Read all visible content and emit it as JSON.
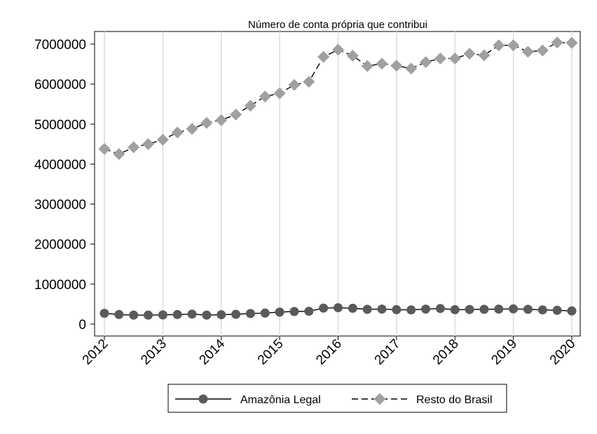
{
  "chart_data": {
    "type": "line",
    "title": "Número de conta própria que contribui",
    "xlabel": "",
    "ylabel": "",
    "grid": true,
    "legend_position": "bottom",
    "xlim": [
      2012,
      2020
    ],
    "ylim": [
      0,
      7000000
    ],
    "x_ticks": [
      "2012",
      "2013",
      "2014",
      "2015",
      "2016",
      "2017",
      "2018",
      "2019",
      "2020"
    ],
    "y_ticks": [
      "0",
      "1000000",
      "2000000",
      "3000000",
      "4000000",
      "5000000",
      "6000000",
      "7000000"
    ],
    "x": [
      2012.0,
      2012.25,
      2012.5,
      2012.75,
      2013.0,
      2013.25,
      2013.5,
      2013.75,
      2014.0,
      2014.25,
      2014.5,
      2014.75,
      2015.0,
      2015.25,
      2015.5,
      2015.75,
      2016.0,
      2016.25,
      2016.5,
      2016.75,
      2017.0,
      2017.25,
      2017.5,
      2017.75,
      2018.0,
      2018.25,
      2018.5,
      2018.75,
      2019.0,
      2019.25,
      2019.5,
      2019.75,
      2020.0
    ],
    "series": [
      {
        "name": "Amazônia Legal",
        "color": "#5a5a5a",
        "line_style": "solid",
        "marker": "circle",
        "values": [
          270000,
          240000,
          225000,
          225000,
          230000,
          240000,
          250000,
          225000,
          235000,
          245000,
          265000,
          275000,
          300000,
          315000,
          320000,
          400000,
          410000,
          395000,
          370000,
          375000,
          360000,
          355000,
          375000,
          390000,
          360000,
          365000,
          370000,
          375000,
          380000,
          370000,
          355000,
          345000,
          330000
        ]
      },
      {
        "name": "Resto do Brasil",
        "color": "#a0a0a0",
        "line_style": "dashed",
        "marker": "diamond",
        "values": [
          4380000,
          4250000,
          4420000,
          4500000,
          4610000,
          4790000,
          4880000,
          5030000,
          5100000,
          5240000,
          5460000,
          5690000,
          5770000,
          5980000,
          6060000,
          6680000,
          6860000,
          6710000,
          6450000,
          6510000,
          6460000,
          6390000,
          6550000,
          6640000,
          6640000,
          6760000,
          6720000,
          6970000,
          6970000,
          6810000,
          6840000,
          7040000,
          7030000
        ]
      }
    ]
  }
}
